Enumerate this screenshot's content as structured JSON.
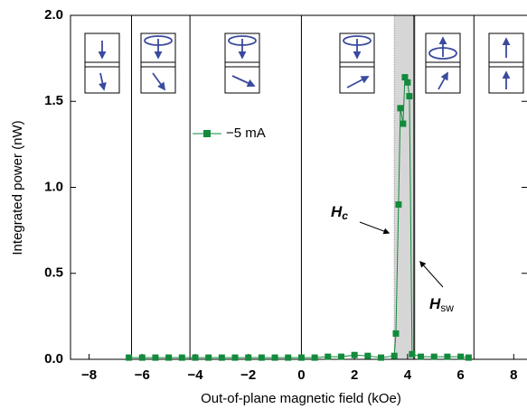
{
  "chart_data": {
    "type": "line",
    "x_label": "Out-of-plane magnetic field (kOe)",
    "y_label": "Integrated power (nW)",
    "x": [
      -6.5,
      -6,
      -5.5,
      -5,
      -4.5,
      -4,
      -3.5,
      -3,
      -2.5,
      -2,
      -1.5,
      -1,
      -0.5,
      0,
      0.5,
      1,
      1.5,
      2,
      2.5,
      3,
      3.5,
      3.56,
      3.66,
      3.73,
      3.83,
      3.9,
      4.0,
      4.07,
      4.17,
      4.5,
      5,
      5.5,
      6,
      6.3
    ],
    "series": [
      {
        "name": "−5 mA",
        "color": "#138a3c",
        "values": [
          0.01,
          0.01,
          0.01,
          0.01,
          0.01,
          0.01,
          0.01,
          0.01,
          0.01,
          0.01,
          0.01,
          0.01,
          0.01,
          0.01,
          0.01,
          0.015,
          0.015,
          0.025,
          0.02,
          0.01,
          0.02,
          0.15,
          0.9,
          1.46,
          1.37,
          1.64,
          1.61,
          1.53,
          0.03,
          0.015,
          0.015,
          0.015,
          0.015,
          0.01
        ]
      }
    ],
    "xlim": [
      -8.7,
      8.5
    ],
    "ylim": [
      0,
      2
    ],
    "xticks": [
      {
        "value": -8,
        "label": "−8"
      },
      {
        "value": -6,
        "label": "−6"
      },
      {
        "value": -4,
        "label": "−4"
      },
      {
        "value": -2,
        "label": "−2"
      },
      0,
      2,
      4,
      6,
      8
    ],
    "yticks": [
      {
        "value": 0,
        "label": "0.0"
      },
      {
        "value": 0.5,
        "label": "0.5"
      },
      {
        "value": 1,
        "label": "1.0"
      },
      {
        "value": 1.5,
        "label": "1.5"
      },
      {
        "value": 2,
        "label": "2.0"
      }
    ],
    "region_lines": [
      -6.4,
      -4.2,
      0,
      6.5
    ],
    "shaded_band": [
      3.5,
      4.25
    ],
    "annotations": [
      {
        "text": "H",
        "subscript": "c"
      },
      {
        "text": "H",
        "subscript": "sw"
      }
    ]
  }
}
